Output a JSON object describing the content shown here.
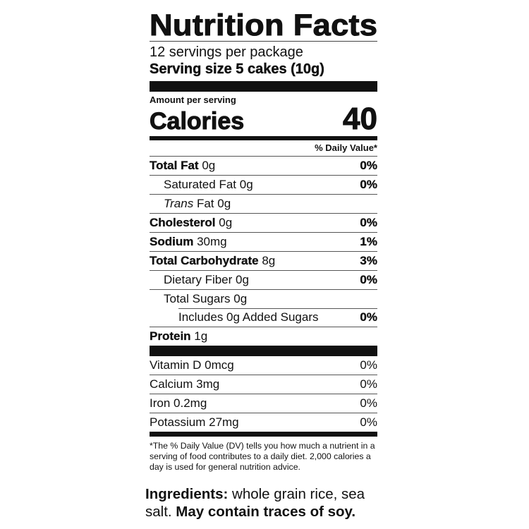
{
  "title": "Nutrition Facts",
  "servings": "12 servings per package",
  "serving_size": "Serving size 5 cakes (10g)",
  "amount_per_serving": "Amount per serving",
  "calories_label": "Calories",
  "calories_value": "40",
  "daily_value_header": "% Daily Value*",
  "nutrients": [
    {
      "name": "Total Fat",
      "amount": "0g",
      "dv": "0%"
    },
    {
      "name": "Saturated Fat",
      "amount": "0g",
      "dv": "0%"
    },
    {
      "name": "Trans",
      "name_rest": "Fat",
      "amount": "0g",
      "dv": ""
    },
    {
      "name": "Cholesterol",
      "amount": "0g",
      "dv": "0%"
    },
    {
      "name": "Sodium",
      "amount": "30mg",
      "dv": "1%"
    },
    {
      "name": "Total Carbohydrate",
      "amount": "8g",
      "dv": "3%"
    },
    {
      "name": "Dietary Fiber",
      "amount": "0g",
      "dv": "0%"
    },
    {
      "name": "Total Sugars",
      "amount": "0g",
      "dv": ""
    },
    {
      "name": "Includes 0g Added Sugars",
      "amount": "",
      "dv": "0%"
    },
    {
      "name": "Protein",
      "amount": "1g",
      "dv": ""
    }
  ],
  "vitamins": [
    {
      "name": "Vitamin D",
      "amount": "0mcg",
      "dv": "0%"
    },
    {
      "name": "Calcium",
      "amount": "3mg",
      "dv": "0%"
    },
    {
      "name": "Iron",
      "amount": "0.2mg",
      "dv": "0%"
    },
    {
      "name": "Potassium",
      "amount": "27mg",
      "dv": "0%"
    }
  ],
  "footnote": "*The % Daily Value (DV) tells you how much a nutrient in a serving of food contributes to a daily diet. 2,000 calories a day is used for general nutrition advice.",
  "ingredients": {
    "label": "Ingredients:",
    "text": " whole grain rice, sea salt. ",
    "allergen": "May contain traces of soy."
  }
}
